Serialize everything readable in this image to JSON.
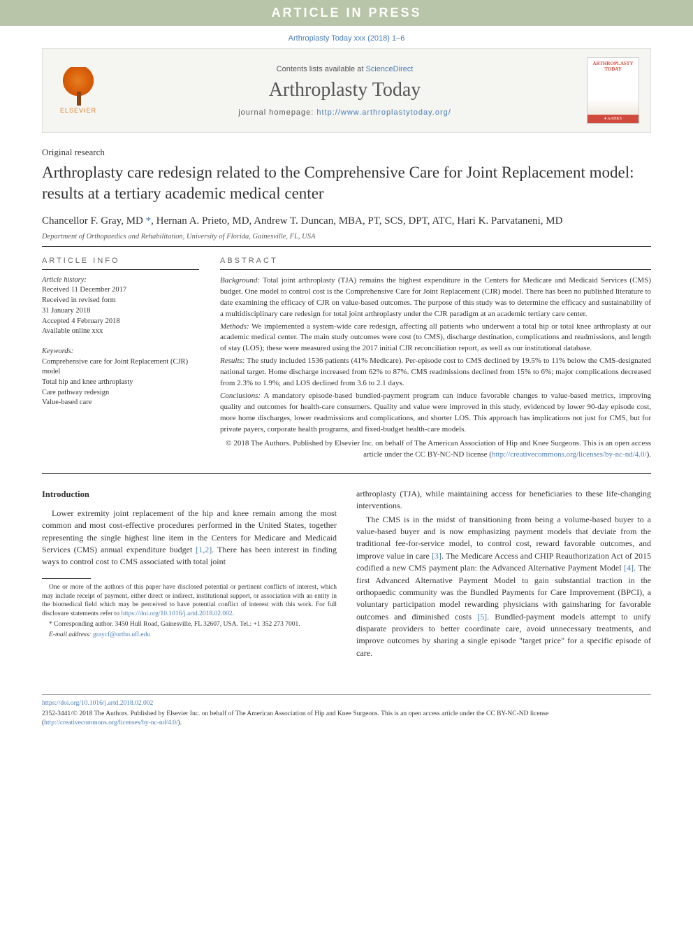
{
  "banner": {
    "text": "ARTICLE IN PRESS"
  },
  "citation": "Arthroplasty Today xxx (2018) 1–6",
  "header": {
    "contents_prefix": "Contents lists available at ",
    "contents_link": "ScienceDirect",
    "journal": "Arthroplasty Today",
    "homepage_prefix": "journal homepage: ",
    "homepage_url": "http://www.arthroplastytoday.org/",
    "elsevier": "ELSEVIER",
    "cover_title": "ARTHROPLASTY TODAY",
    "cover_footer": "♦ AAHKS"
  },
  "article": {
    "type": "Original research",
    "title": "Arthroplasty care redesign related to the Comprehensive Care for Joint Replacement model: results at a tertiary academic medical center",
    "authors_html": "Chancellor F. Gray, MD <span class='corr'>*</span>, Hernan A. Prieto, MD, Andrew T. Duncan, MBA, PT, SCS, DPT, ATC, Hari K. Parvataneni, MD",
    "affiliation": "Department of Orthopaedics and Rehabilitation, University of Florida, Gainesville, FL, USA"
  },
  "info": {
    "heading": "ARTICLE INFO",
    "history_label": "Article history:",
    "history": [
      "Received 11 December 2017",
      "Received in revised form",
      "31 January 2018",
      "Accepted 4 February 2018",
      "Available online xxx"
    ],
    "keywords_label": "Keywords:",
    "keywords": [
      "Comprehensive care for Joint Replacement (CJR) model",
      "Total hip and knee arthroplasty",
      "Care pathway redesign",
      "Value-based care"
    ]
  },
  "abstract": {
    "heading": "ABSTRACT",
    "sections": [
      {
        "label": "Background:",
        "text": " Total joint arthroplasty (TJA) remains the highest expenditure in the Centers for Medicare and Medicaid Services (CMS) budget. One model to control cost is the Comprehensive Care for Joint Replacement (CJR) model. There has been no published literature to date examining the efficacy of CJR on value-based outcomes. The purpose of this study was to determine the efficacy and sustainability of a multidisciplinary care redesign for total joint arthroplasty under the CJR paradigm at an academic tertiary care center."
      },
      {
        "label": "Methods:",
        "text": " We implemented a system-wide care redesign, affecting all patients who underwent a total hip or total knee arthroplasty at our academic medical center. The main study outcomes were cost (to CMS), discharge destination, complications and readmissions, and length of stay (LOS); these were measured using the 2017 initial CJR reconciliation report, as well as our institutional database."
      },
      {
        "label": "Results:",
        "text": " The study included 1536 patients (41% Medicare). Per-episode cost to CMS declined by 19.5% to 11% below the CMS-designated national target. Home discharge increased from 62% to 87%. CMS readmissions declined from 15% to 6%; major complications decreased from 2.3% to 1.9%; and LOS declined from 3.6 to 2.1 days."
      },
      {
        "label": "Conclusions:",
        "text": " A mandatory episode-based bundled-payment program can induce favorable changes to value-based metrics, improving quality and outcomes for health-care consumers. Quality and value were improved in this study, evidenced by lower 90-day episode cost, more home discharges, lower readmissions and complications, and shorter LOS. This approach has implications not just for CMS, but for private payers, corporate health programs, and fixed-budget health-care models."
      }
    ],
    "copyright": "© 2018 The Authors. Published by Elsevier Inc. on behalf of The American Association of Hip and Knee Surgeons. This is an open access article under the CC BY-NC-ND license (",
    "license_url": "http://creativecommons.org/licenses/by-nc-nd/4.0/",
    "copyright_suffix": ")."
  },
  "body": {
    "intro_heading": "Introduction",
    "left_p1": "Lower extremity joint replacement of the hip and knee remain among the most common and most cost-effective procedures performed in the United States, together representing the single highest line item in the Centers for Medicare and Medicaid Services (CMS) annual expenditure budget ",
    "left_ref1": "[1,2]",
    "left_p1_suffix": ". There has been interest in finding ways to control cost to CMS associated with total joint",
    "right_p1": "arthroplasty (TJA), while maintaining access for beneficiaries to these life-changing interventions.",
    "right_p2a": "The CMS is in the midst of transitioning from being a volume-based buyer to a value-based buyer and is now emphasizing payment models that deviate from the traditional fee-for-service model, to control cost, reward favorable outcomes, and improve value in care ",
    "right_ref3": "[3]",
    "right_p2b": ". The Medicare Access and CHIP Reauthorization Act of 2015 codified a new CMS payment plan: the Advanced Alternative Payment Model ",
    "right_ref4": "[4]",
    "right_p2c": ". The first Advanced Alternative Payment Model to gain substantial traction in the orthopaedic community was the Bundled Payments for Care Improvement (BPCI), a voluntary participation model rewarding physicians with gainsharing for favorable outcomes and diminished costs ",
    "right_ref5": "[5]",
    "right_p2d": ". Bundled-payment models attempt to unify disparate providers to better coordinate care, avoid unnecessary treatments, and improve outcomes by sharing a single episode \"target price\" for a specific episode of care."
  },
  "footnotes": {
    "disclosure": "One or more of the authors of this paper have disclosed potential or pertinent conflicts of interest, which may include receipt of payment, either direct or indirect, institutional support, or association with an entity in the biomedical field which may be perceived to have potential conflict of interest with this work. For full disclosure statements refer to ",
    "disclosure_url": "https://doi.org/10.1016/j.artd.2018.02.002",
    "disclosure_suffix": ".",
    "corr_label": "* Corresponding author. ",
    "corr_text": "3450 Hull Road, Gainesville, FL 32607, USA. Tel.: +1 352 273 7001.",
    "email_label": "E-mail address: ",
    "email": "graycf@ortho.ufl.edu"
  },
  "footer": {
    "doi": "https://doi.org/10.1016/j.artd.2018.02.002",
    "issn_line": "2352-3441/© 2018 The Authors. Published by Elsevier Inc. on behalf of The American Association of Hip and Knee Surgeons. This is an open access article under the CC BY-NC-ND license (",
    "license_url": "http://creativecommons.org/licenses/by-nc-nd/4.0/",
    "issn_suffix": ")."
  },
  "colors": {
    "banner_bg": "#b8c5a8",
    "banner_text": "#ffffff",
    "link": "#4a7db5",
    "header_bg": "#f5f5f2",
    "elsevier_orange": "#e67e22",
    "cover_red": "#d14b3d",
    "text": "#333333",
    "muted": "#666666"
  }
}
